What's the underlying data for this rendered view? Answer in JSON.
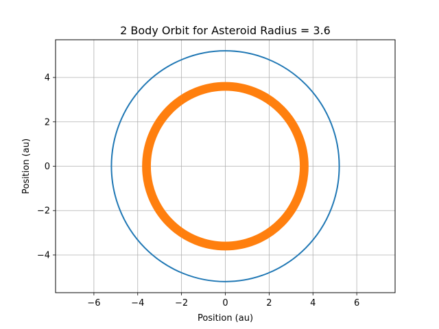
{
  "chart_data": {
    "type": "scatter",
    "title": "2 Body Orbit for Asteroid Radius = 3.6",
    "xlabel": "Position (au)",
    "ylabel": "Position (au)",
    "xlim": [
      -7.75,
      7.75
    ],
    "ylim": [
      -5.7,
      5.7
    ],
    "grid": true,
    "xticks": [
      -6,
      -4,
      -2,
      0,
      2,
      4,
      6
    ],
    "yticks": [
      -4,
      -2,
      0,
      2,
      4
    ],
    "xtick_labels": [
      "−6",
      "−4",
      "−2",
      "0",
      "2",
      "4",
      "6"
    ],
    "ytick_labels": [
      "−4",
      "−2",
      "0",
      "2",
      "4"
    ],
    "series": [
      {
        "color": "#1f77b4",
        "shape": "circle-orbit",
        "radius": 5.2,
        "thickness": 0.08
      },
      {
        "color": "#ff7f0e",
        "shape": "circle-orbit-band",
        "inner_radius": 3.4,
        "outer_radius": 3.8
      }
    ]
  }
}
